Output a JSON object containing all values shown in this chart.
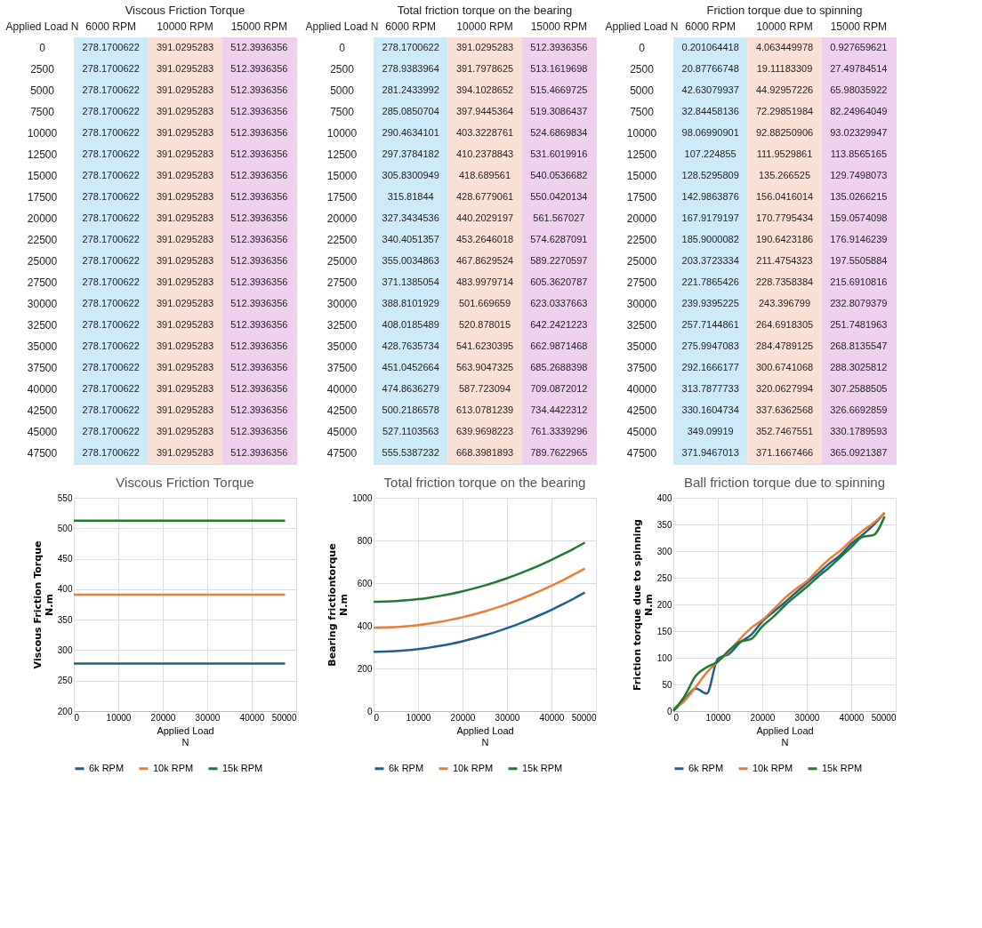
{
  "chart_data": [
    {
      "type": "heatmap",
      "title": "Viscous Friction Torque",
      "ylabel": "Applied Load N",
      "categories": [
        "6000 RPM",
        "10000 RPM",
        "15000 RPM"
      ],
      "y_categories": [
        "0",
        "2500",
        "5000",
        "7500",
        "10000",
        "12500",
        "15000",
        "17500",
        "20000",
        "22500",
        "25000",
        "27500",
        "30000",
        "32500",
        "35000",
        "37500",
        "40000",
        "42500",
        "45000",
        "47500"
      ],
      "cells": [
        [
          278.1700622,
          391.0295283,
          512.3936356
        ],
        [
          278.1700622,
          391.0295283,
          512.3936356
        ],
        [
          278.1700622,
          391.0295283,
          512.3936356
        ],
        [
          278.1700622,
          391.0295283,
          512.3936356
        ],
        [
          278.1700622,
          391.0295283,
          512.3936356
        ],
        [
          278.1700622,
          391.0295283,
          512.3936356
        ],
        [
          278.1700622,
          391.0295283,
          512.3936356
        ],
        [
          278.1700622,
          391.0295283,
          512.3936356
        ],
        [
          278.1700622,
          391.0295283,
          512.3936356
        ],
        [
          278.1700622,
          391.0295283,
          512.3936356
        ],
        [
          278.1700622,
          391.0295283,
          512.3936356
        ],
        [
          278.1700622,
          391.0295283,
          512.3936356
        ],
        [
          278.1700622,
          391.0295283,
          512.3936356
        ],
        [
          278.1700622,
          391.0295283,
          512.3936356
        ],
        [
          278.1700622,
          391.0295283,
          512.3936356
        ],
        [
          278.1700622,
          391.0295283,
          512.3936356
        ],
        [
          278.1700622,
          391.0295283,
          512.3936356
        ],
        [
          278.1700622,
          391.0295283,
          512.3936356
        ],
        [
          278.1700622,
          391.0295283,
          512.3936356
        ],
        [
          278.1700622,
          391.0295283,
          512.3936356
        ]
      ],
      "data_labels": true
    },
    {
      "type": "heatmap",
      "title": "Total friction torque on the bearing",
      "ylabel": "Applied Load N",
      "categories": [
        "6000 RPM",
        "10000 RPM",
        "15000 RPM"
      ],
      "y_categories": [
        "0",
        "2500",
        "5000",
        "7500",
        "10000",
        "12500",
        "15000",
        "17500",
        "20000",
        "22500",
        "25000",
        "27500",
        "30000",
        "32500",
        "35000",
        "37500",
        "40000",
        "42500",
        "45000",
        "47500"
      ],
      "cells": [
        [
          278.1700622,
          391.0295283,
          512.3936356
        ],
        [
          278.9383964,
          391.7978625,
          513.1619698
        ],
        [
          281.2433992,
          394.1028652,
          515.4669725
        ],
        [
          285.0850704,
          397.9445364,
          519.3086437
        ],
        [
          290.4634101,
          403.3228761,
          524.6869834
        ],
        [
          297.3784182,
          410.2378843,
          531.6019916
        ],
        [
          305.8300949,
          418.689561,
          540.0536682
        ],
        [
          315.81844,
          428.6779061,
          550.0420134
        ],
        [
          327.3434536,
          440.2029197,
          561.567027
        ],
        [
          340.4051357,
          453.2646018,
          574.6287091
        ],
        [
          355.0034863,
          467.8629524,
          589.2270597
        ],
        [
          371.1385054,
          483.9979714,
          605.3620787
        ],
        [
          388.8101929,
          501.669659,
          623.0337663
        ],
        [
          408.0185489,
          520.878015,
          642.2421223
        ],
        [
          428.7635734,
          541.6230395,
          662.9871468
        ],
        [
          451.0452664,
          563.9047325,
          685.2688398
        ],
        [
          474.8636279,
          587.723094,
          709.0872012
        ],
        [
          500.2186578,
          613.0781239,
          734.4422312
        ],
        [
          527.1103563,
          639.9698223,
          761.3339296
        ],
        [
          555.5387232,
          668.3981893,
          789.7622965
        ]
      ],
      "data_labels": true
    },
    {
      "type": "heatmap",
      "title": "Friction torque due to spinning",
      "ylabel": "Applied Load N",
      "categories": [
        "6000 RPM",
        "10000 RPM",
        "15000 RPM"
      ],
      "y_categories": [
        "0",
        "2500",
        "5000",
        "7500",
        "10000",
        "12500",
        "15000",
        "17500",
        "20000",
        "22500",
        "25000",
        "27500",
        "30000",
        "32500",
        "35000",
        "37500",
        "40000",
        "42500",
        "45000",
        "47500"
      ],
      "cells": [
        [
          0.201064418,
          4.063449978,
          0.927659621
        ],
        [
          20.87766748,
          19.11183309,
          27.49784514
        ],
        [
          42.63079937,
          44.92957226,
          65.98035922
        ],
        [
          32.84458136,
          72.29851984,
          82.24964049
        ],
        [
          98.06990901,
          92.88250906,
          93.02329947
        ],
        [
          107.224855,
          111.9529861,
          113.8565165
        ],
        [
          128.5295809,
          135.266525,
          129.7498073
        ],
        [
          142.9863876,
          156.0416014,
          135.0266215
        ],
        [
          167.9179197,
          170.7795434,
          159.0574098
        ],
        [
          185.9000082,
          190.6423186,
          176.9146239
        ],
        [
          203.3723334,
          211.4754323,
          197.5505884
        ],
        [
          221.7865426,
          228.7358384,
          215.6910816
        ],
        [
          239.9395225,
          243.396799,
          232.8079379
        ],
        [
          257.7144861,
          264.6918305,
          251.7481963
        ],
        [
          275.9947083,
          284.4789125,
          268.8135547
        ],
        [
          292.1666177,
          300.6741068,
          288.3025812
        ],
        [
          313.7877733,
          320.0627994,
          307.2588505
        ],
        [
          330.1604734,
          337.6362568,
          326.6692859
        ],
        [
          349.09919,
          352.7467551,
          330.1789593
        ],
        [
          371.9467013,
          371.1667466,
          365.0921387
        ]
      ],
      "data_labels": true
    },
    {
      "type": "line",
      "title": "Viscous Friction Torque",
      "xlabel": "Applied Load\nN",
      "ylabel": "Viscous Friction Torque\nN.m",
      "x": [
        0,
        2500,
        5000,
        7500,
        10000,
        12500,
        15000,
        17500,
        20000,
        22500,
        25000,
        27500,
        30000,
        32500,
        35000,
        37500,
        40000,
        42500,
        45000,
        47500
      ],
      "series": [
        {
          "name": "6k RPM",
          "color": "#1f5f8b",
          "values": [
            278.1700622,
            278.1700622,
            278.1700622,
            278.1700622,
            278.1700622,
            278.1700622,
            278.1700622,
            278.1700622,
            278.1700622,
            278.1700622,
            278.1700622,
            278.1700622,
            278.1700622,
            278.1700622,
            278.1700622,
            278.1700622,
            278.1700622,
            278.1700622,
            278.1700622,
            278.1700622
          ]
        },
        {
          "name": "10k RPM",
          "color": "#ed7d31",
          "values": [
            391.0295283,
            391.0295283,
            391.0295283,
            391.0295283,
            391.0295283,
            391.0295283,
            391.0295283,
            391.0295283,
            391.0295283,
            391.0295283,
            391.0295283,
            391.0295283,
            391.0295283,
            391.0295283,
            391.0295283,
            391.0295283,
            391.0295283,
            391.0295283,
            391.0295283,
            391.0295283
          ]
        },
        {
          "name": "15k RPM",
          "color": "#1e7b34",
          "values": [
            512.3936356,
            512.3936356,
            512.3936356,
            512.3936356,
            512.3936356,
            512.3936356,
            512.3936356,
            512.3936356,
            512.3936356,
            512.3936356,
            512.3936356,
            512.3936356,
            512.3936356,
            512.3936356,
            512.3936356,
            512.3936356,
            512.3936356,
            512.3936356,
            512.3936356,
            512.3936356
          ]
        }
      ],
      "xlim": [
        0,
        50000
      ],
      "xticks": [
        0,
        10000,
        20000,
        30000,
        40000,
        50000
      ],
      "ylim": [
        200,
        550
      ],
      "yticks": [
        200,
        250,
        300,
        350,
        400,
        450,
        500,
        550
      ],
      "grid": true,
      "legend": "bottom"
    },
    {
      "type": "line",
      "title": "Total friction torque on the bearing",
      "xlabel": "Applied Load\nN",
      "ylabel": "Bearing frictiontorque\nN.m",
      "x": [
        0,
        2500,
        5000,
        7500,
        10000,
        12500,
        15000,
        17500,
        20000,
        22500,
        25000,
        27500,
        30000,
        32500,
        35000,
        37500,
        40000,
        42500,
        45000,
        47500
      ],
      "series": [
        {
          "name": "6k RPM",
          "color": "#1f5f8b",
          "values": [
            278.1700622,
            278.9383964,
            281.2433992,
            285.0850704,
            290.4634101,
            297.3784182,
            305.8300949,
            315.81844,
            327.3434536,
            340.4051357,
            355.0034863,
            371.1385054,
            388.8101929,
            408.0185489,
            428.7635734,
            451.0452664,
            474.8636279,
            500.2186578,
            527.1103563,
            555.5387232
          ]
        },
        {
          "name": "10k RPM",
          "color": "#ed7d31",
          "values": [
            391.0295283,
            391.7978625,
            394.1028652,
            397.9445364,
            403.3228761,
            410.2378843,
            418.689561,
            428.6779061,
            440.2029197,
            453.2646018,
            467.8629524,
            483.9979714,
            501.669659,
            520.878015,
            541.6230395,
            563.9047325,
            587.723094,
            613.0781239,
            639.9698223,
            668.3981893
          ]
        },
        {
          "name": "15k RPM",
          "color": "#1e7b34",
          "values": [
            512.3936356,
            513.1619698,
            515.4669725,
            519.3086437,
            524.6869834,
            531.6019916,
            540.0536682,
            550.0420134,
            561.567027,
            574.6287091,
            589.2270597,
            605.3620787,
            623.0337663,
            642.2421223,
            662.9871468,
            685.2688398,
            709.0872012,
            734.4422312,
            761.3339296,
            789.7622965
          ]
        }
      ],
      "xlim": [
        0,
        50000
      ],
      "xticks": [
        0,
        10000,
        20000,
        30000,
        40000,
        50000
      ],
      "ylim": [
        0,
        1000
      ],
      "yticks": [
        0,
        200,
        400,
        600,
        800,
        1000
      ],
      "grid": true,
      "legend": "bottom"
    },
    {
      "type": "line",
      "title": "Ball friction torque due to spinning",
      "xlabel": "Applied Load\nN",
      "ylabel": "Friction torque due to spinning\nN.m",
      "x": [
        0,
        2500,
        5000,
        7500,
        10000,
        12500,
        15000,
        17500,
        20000,
        22500,
        25000,
        27500,
        30000,
        32500,
        35000,
        37500,
        40000,
        42500,
        45000,
        47500
      ],
      "series": [
        {
          "name": "6k RPM",
          "color": "#1f5f8b",
          "values": [
            0.201064418,
            20.87766748,
            42.63079937,
            32.84458136,
            98.06990901,
            107.224855,
            128.5295809,
            142.9863876,
            167.9179197,
            185.9000082,
            203.3723334,
            221.7865426,
            239.9395225,
            257.7144861,
            275.9947083,
            292.1666177,
            313.7877733,
            330.1604734,
            349.09919,
            371.9467013
          ]
        },
        {
          "name": "10k RPM",
          "color": "#ed7d31",
          "values": [
            4.063449978,
            19.11183309,
            44.92957226,
            72.29851984,
            92.88250906,
            111.9529861,
            135.266525,
            156.0416014,
            170.7795434,
            190.6423186,
            211.4754323,
            228.7358384,
            243.396799,
            264.6918305,
            284.4789125,
            300.6741068,
            320.0627994,
            337.6362568,
            352.7467551,
            371.1667466
          ]
        },
        {
          "name": "15k RPM",
          "color": "#1e7b34",
          "values": [
            0.927659621,
            27.49784514,
            65.98035922,
            82.24964049,
            93.02329947,
            113.8565165,
            129.7498073,
            135.0266215,
            159.0574098,
            176.9146239,
            197.5505884,
            215.6910816,
            232.8079379,
            251.7481963,
            268.8135547,
            288.3025812,
            307.2588505,
            326.6692859,
            330.1789593,
            365.0921387
          ]
        }
      ],
      "xlim": [
        0,
        50000
      ],
      "xticks": [
        0,
        10000,
        20000,
        30000,
        40000,
        50000
      ],
      "ylim": [
        0,
        400
      ],
      "yticks": [
        0,
        50,
        100,
        150,
        200,
        250,
        300,
        350,
        400
      ],
      "grid": true,
      "legend": "bottom"
    }
  ]
}
